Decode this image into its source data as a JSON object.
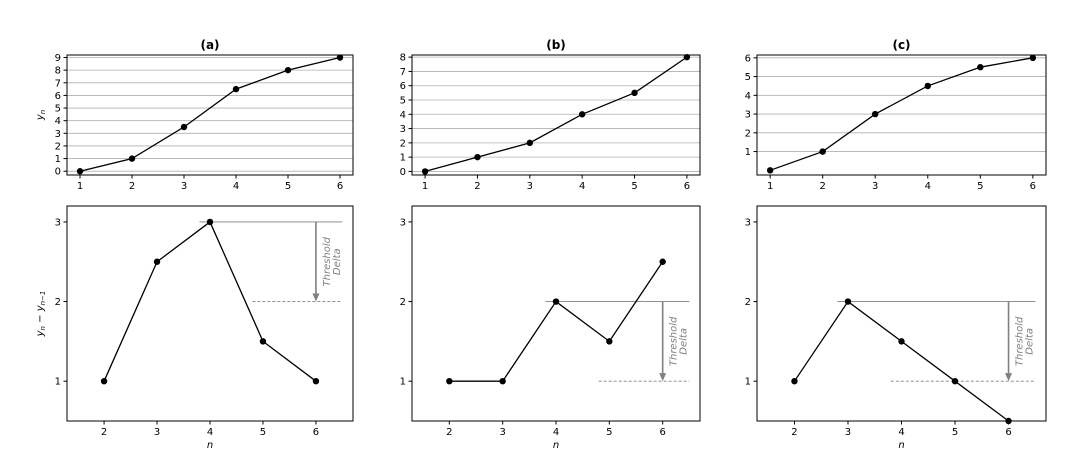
{
  "chart_data": [
    {
      "type": "line",
      "title": "(a)",
      "ylabel": "y_n",
      "xlabel": "",
      "x": [
        1,
        2,
        3,
        4,
        5,
        6
      ],
      "series": [
        {
          "values": [
            0,
            1,
            3.5,
            6.5,
            8,
            9
          ]
        }
      ],
      "xlim": [
        0.75,
        6.25
      ],
      "ylim": [
        -0.3,
        9.2
      ],
      "xticks": [
        1,
        2,
        3,
        4,
        5,
        6
      ],
      "yticks": [
        0,
        1,
        2,
        3,
        4,
        5,
        6,
        7,
        8,
        9
      ],
      "grid": "horizontal",
      "color": "#000000"
    },
    {
      "type": "line",
      "title": "(b)",
      "ylabel": "",
      "xlabel": "",
      "x": [
        1,
        2,
        3,
        4,
        5,
        6
      ],
      "series": [
        {
          "values": [
            0,
            1,
            2,
            4,
            5.5,
            8
          ]
        }
      ],
      "xlim": [
        0.75,
        6.25
      ],
      "ylim": [
        -0.25,
        8.15
      ],
      "xticks": [
        1,
        2,
        3,
        4,
        5,
        6
      ],
      "yticks": [
        0,
        1,
        2,
        3,
        4,
        5,
        6,
        7,
        8
      ],
      "grid": "horizontal",
      "color": "#000000"
    },
    {
      "type": "line",
      "title": "(c)",
      "ylabel": "",
      "xlabel": "",
      "x": [
        1,
        2,
        3,
        4,
        5,
        6
      ],
      "series": [
        {
          "values": [
            0,
            1,
            3,
            4.5,
            5.5,
            6
          ]
        }
      ],
      "xlim": [
        0.75,
        6.25
      ],
      "ylim": [
        -0.25,
        6.15
      ],
      "xticks": [
        1,
        2,
        3,
        4,
        5,
        6
      ],
      "yticks": [
        1,
        2,
        3,
        4,
        5,
        6
      ],
      "grid": "horizontal",
      "color": "#000000"
    },
    {
      "type": "line",
      "title": "",
      "ylabel": "y_n − y_n−1",
      "xlabel": "n",
      "x": [
        2,
        3,
        4,
        5,
        6
      ],
      "series": [
        {
          "values": [
            1,
            2.5,
            3,
            1.5,
            1
          ]
        }
      ],
      "xlim": [
        1.3,
        6.7
      ],
      "ylim": [
        0.5,
        3.2
      ],
      "xticks": [
        2,
        3,
        4,
        5,
        6
      ],
      "yticks": [
        1,
        2,
        3
      ],
      "grid": "none",
      "color": "#000000",
      "annotation": {
        "text_line1": "Threshold",
        "text_line2": "Delta",
        "peak_y": 3,
        "threshold_y": 2,
        "from_x": 3.8,
        "arrow_x": 6,
        "to_x": 6.5
      }
    },
    {
      "type": "line",
      "title": "",
      "ylabel": "",
      "xlabel": "n",
      "x": [
        2,
        3,
        4,
        5,
        6
      ],
      "series": [
        {
          "values": [
            1,
            1,
            2,
            1.5,
            2.5
          ]
        }
      ],
      "xlim": [
        1.3,
        6.7
      ],
      "ylim": [
        0.5,
        3.2
      ],
      "xticks": [
        2,
        3,
        4,
        5,
        6
      ],
      "yticks": [
        1,
        2,
        3
      ],
      "grid": "none",
      "color": "#000000",
      "annotation": {
        "text_line1": "Threshold",
        "text_line2": "Delta",
        "peak_y": 2,
        "threshold_y": 1,
        "from_x": 3.8,
        "arrow_x": 6,
        "to_x": 6.5
      }
    },
    {
      "type": "line",
      "title": "",
      "ylabel": "",
      "xlabel": "n",
      "x": [
        2,
        3,
        4,
        5,
        6
      ],
      "series": [
        {
          "values": [
            1,
            2,
            1.5,
            1,
            0.5
          ]
        }
      ],
      "xlim": [
        1.3,
        6.7
      ],
      "ylim": [
        0.5,
        3.2
      ],
      "xticks": [
        2,
        3,
        4,
        5,
        6
      ],
      "yticks": [
        1,
        2,
        3
      ],
      "grid": "none",
      "color": "#000000",
      "annotation": {
        "text_line1": "Threshold",
        "text_line2": "Delta",
        "peak_y": 2,
        "threshold_y": 1,
        "from_x": 2.8,
        "arrow_x": 6,
        "to_x": 6.5
      }
    }
  ]
}
